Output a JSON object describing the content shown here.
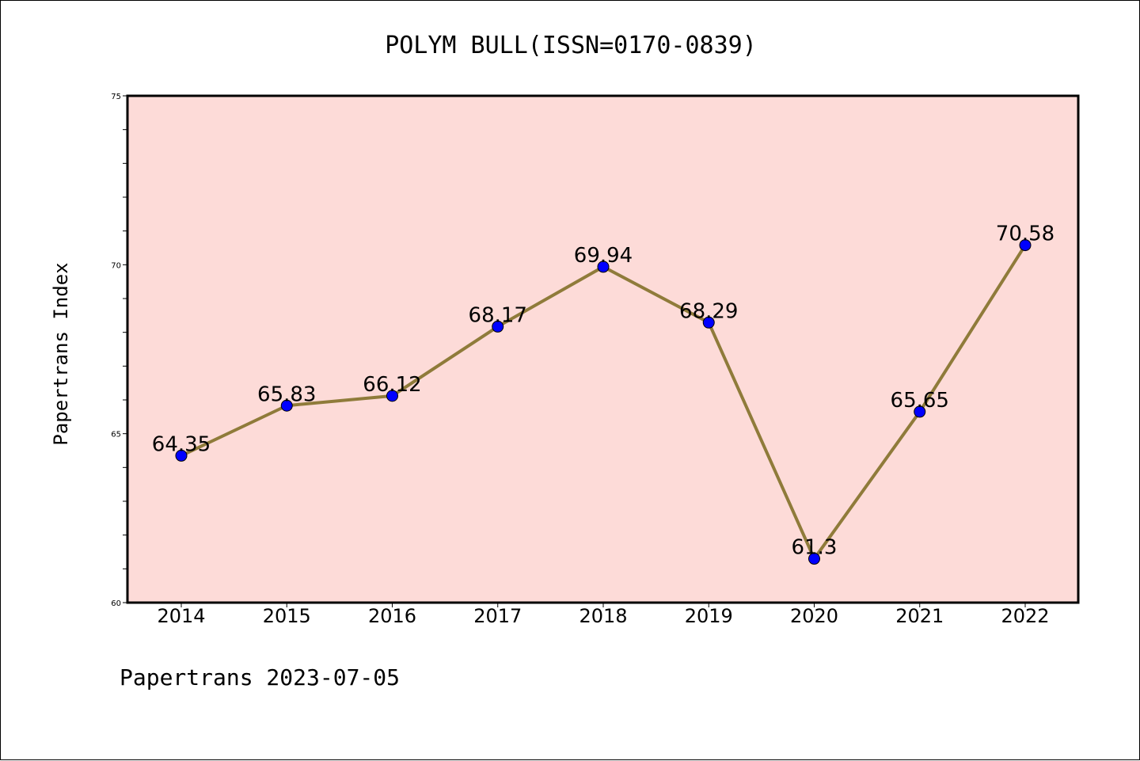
{
  "chart_data": {
    "type": "line",
    "title": "POLYM BULL(ISSN=0170-0839)",
    "ylabel": "Papertrans Index",
    "xlabel": "",
    "categories": [
      "2014",
      "2015",
      "2016",
      "2017",
      "2018",
      "2019",
      "2020",
      "2021",
      "2022"
    ],
    "values": [
      64.35,
      65.83,
      66.12,
      68.17,
      69.94,
      68.29,
      61.3,
      65.65,
      70.58
    ],
    "data_labels": [
      "64.35",
      "65.83",
      "66.12",
      "68.17",
      "69.94",
      "68.29",
      "61.3",
      "65.65",
      "70.58"
    ],
    "ylim": [
      60,
      75
    ],
    "yticks": [
      "60",
      "65",
      "70",
      "75"
    ],
    "yminor_step": 1,
    "grid": false,
    "colors": {
      "plot_background": "#fddbd8",
      "line": "#8f7b3a",
      "marker": "#0000ff"
    }
  },
  "footer": "Papertrans 2023-07-05"
}
